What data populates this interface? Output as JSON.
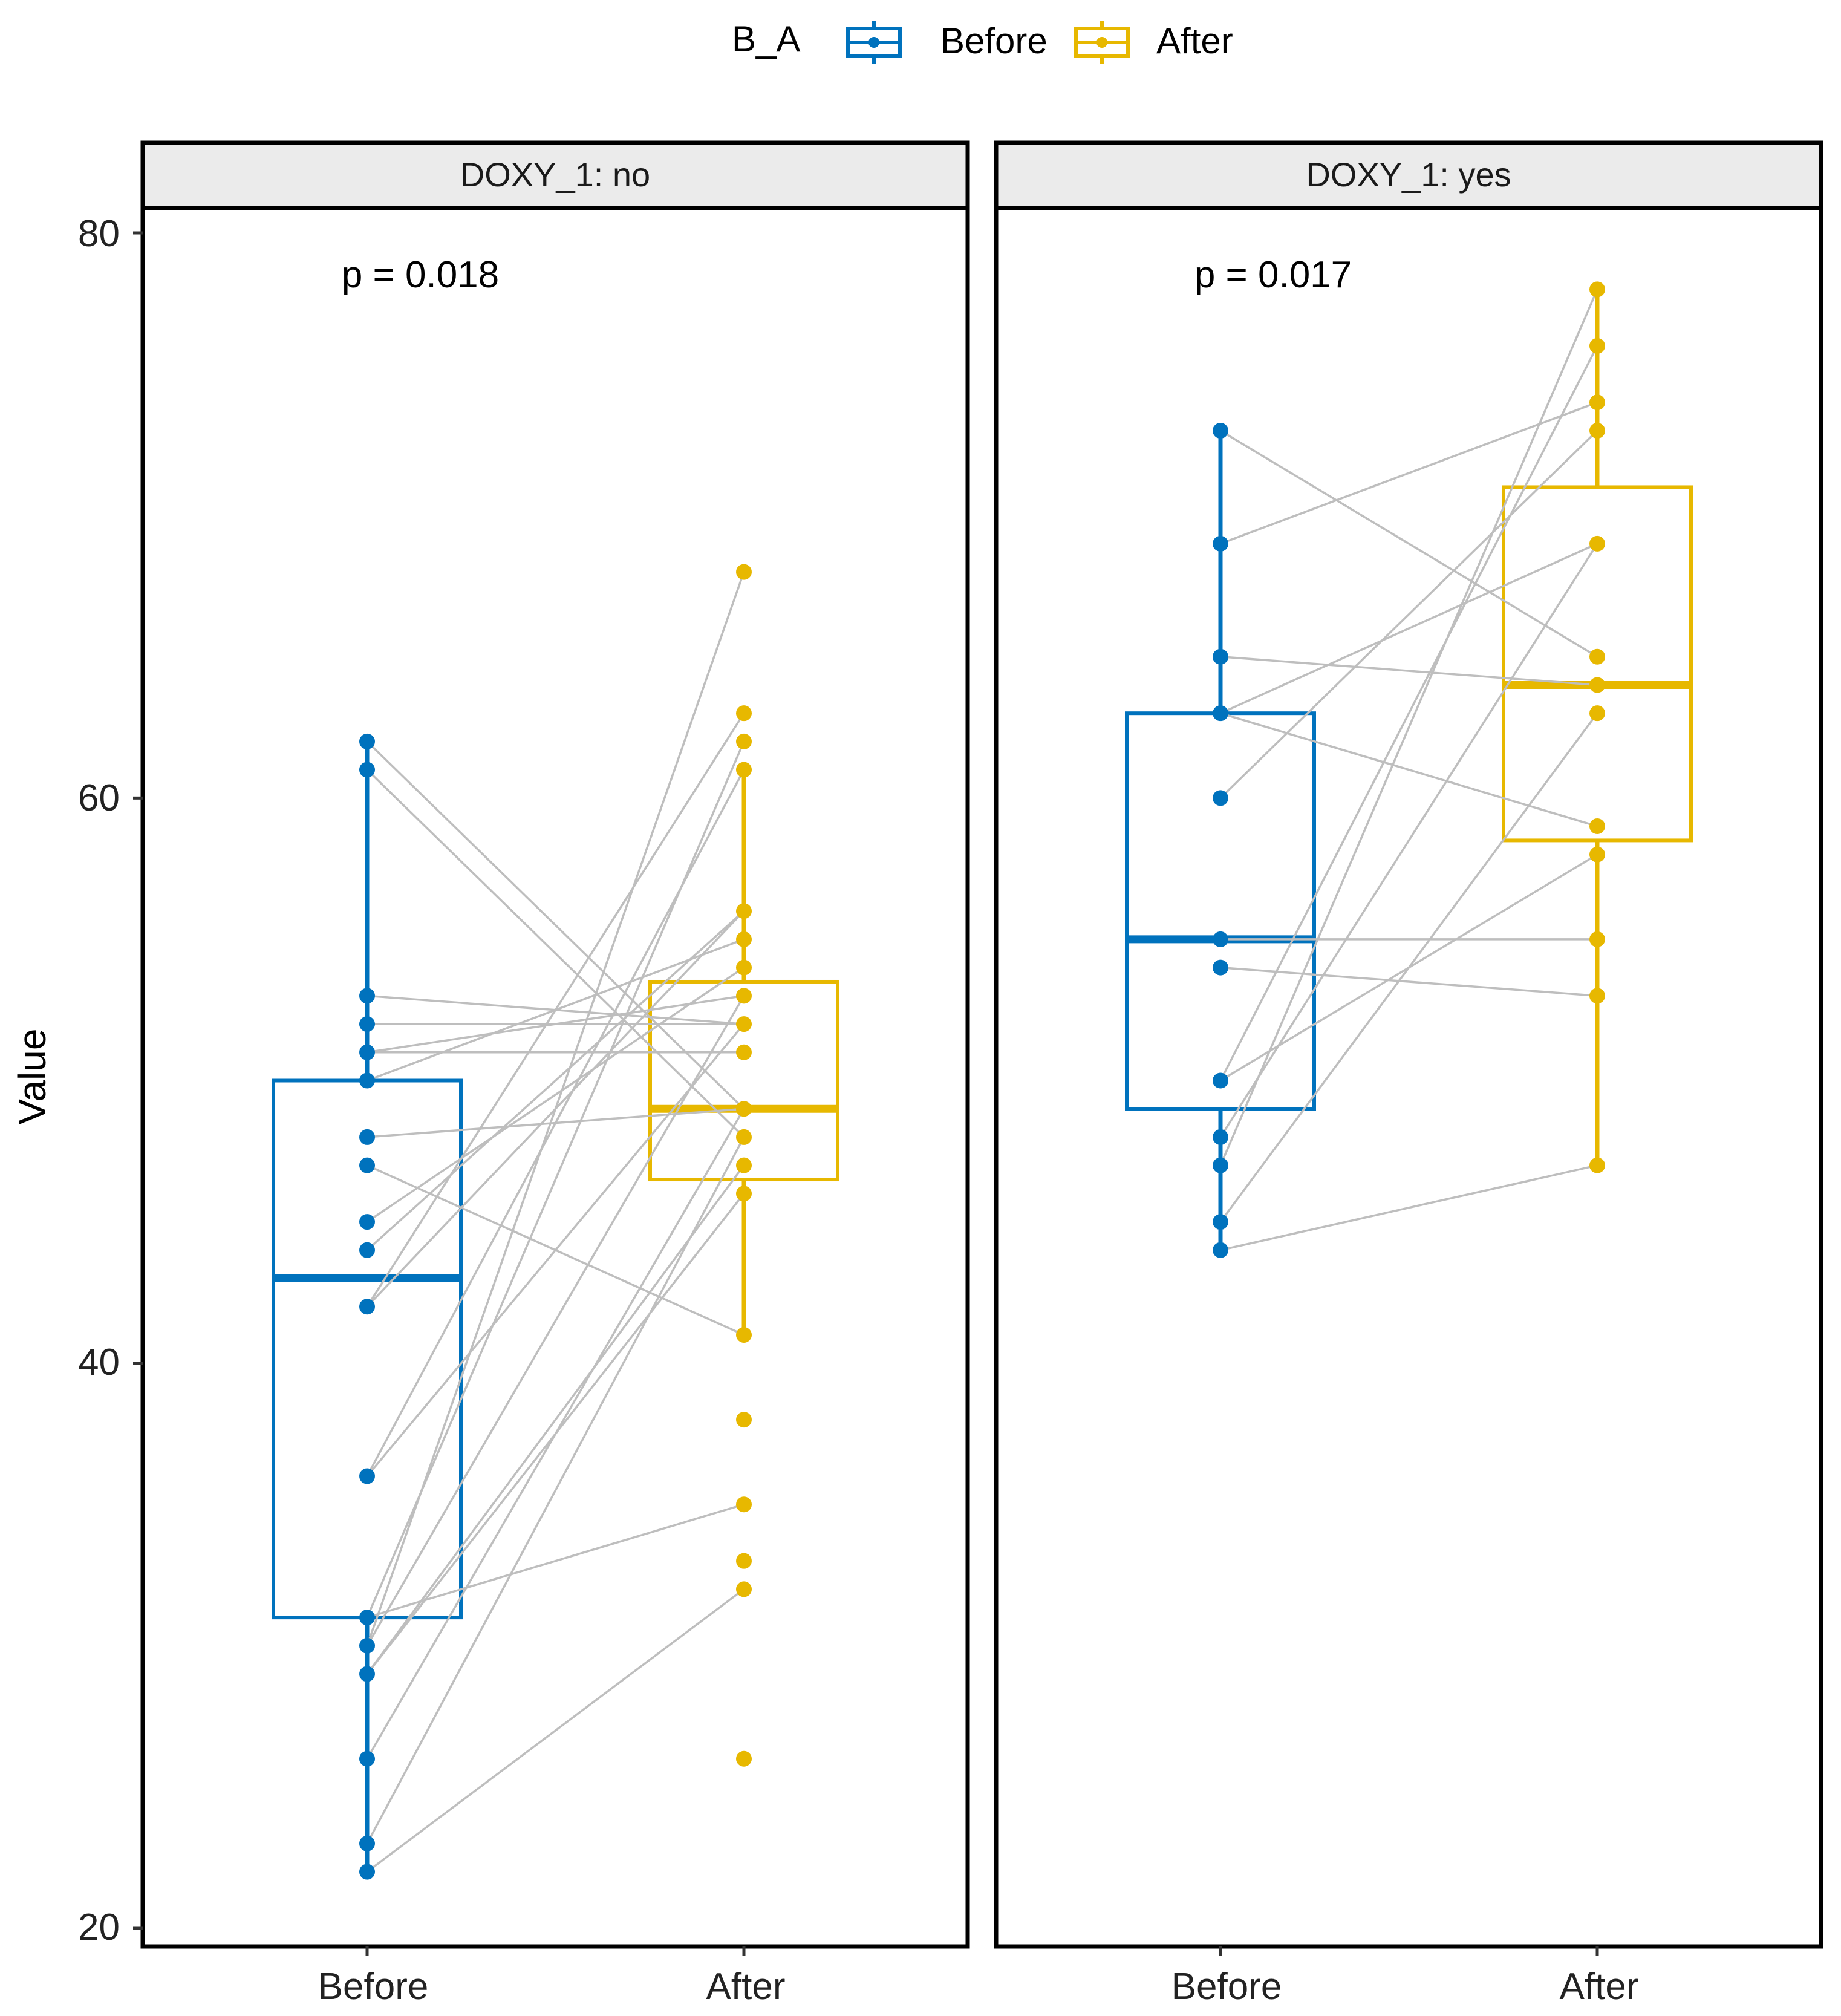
{
  "chart_data": {
    "type": "box",
    "ylabel": "Value",
    "xlabel": "",
    "ylim": [
      20,
      80
    ],
    "yticks": [
      20,
      40,
      60,
      80
    ],
    "categories": [
      "Before",
      "After"
    ],
    "legend": {
      "title": "B_A",
      "position": "top",
      "entries": [
        {
          "name": "Before",
          "color": "#0072BD"
        },
        {
          "name": "After",
          "color": "#E7B800"
        }
      ]
    },
    "colors": {
      "Before": "#0072BD",
      "After": "#E7B800",
      "pair_line": "#BEBEBE"
    },
    "panels": [
      {
        "strip": "DOXY_1: no",
        "pvalue": "p = 0.018",
        "box": {
          "Before": {
            "q1": 31,
            "median": 43,
            "q3": 50,
            "whisker_low": 22,
            "whisker_high": 62
          },
          "After": {
            "q1": 46.5,
            "median": 49,
            "q3": 53.5,
            "whisker_low": 41,
            "whisker_high": 61
          }
        },
        "points": {
          "Before": [
            62,
            61,
            53,
            52,
            51,
            50,
            48,
            47,
            45,
            44,
            42,
            36,
            31,
            30,
            29,
            26,
            23,
            22
          ],
          "After": [
            68,
            63,
            62,
            61,
            56,
            55,
            54,
            53,
            52,
            51,
            49,
            48,
            47,
            46,
            41,
            38,
            35,
            33,
            32,
            26
          ]
        },
        "pairs": [
          [
            62,
            49
          ],
          [
            61,
            48
          ],
          [
            53,
            52
          ],
          [
            52,
            52
          ],
          [
            51,
            51
          ],
          [
            51,
            53
          ],
          [
            50,
            55
          ],
          [
            48,
            49
          ],
          [
            47,
            41
          ],
          [
            45,
            54
          ],
          [
            44,
            56
          ],
          [
            42,
            56
          ],
          [
            42,
            63
          ],
          [
            36,
            52
          ],
          [
            36,
            61
          ],
          [
            31,
            62
          ],
          [
            31,
            35
          ],
          [
            30,
            53
          ],
          [
            30,
            68
          ],
          [
            29,
            47
          ],
          [
            29,
            46
          ],
          [
            26,
            49
          ],
          [
            23,
            48
          ],
          [
            22,
            32
          ]
        ]
      },
      {
        "strip": "DOXY_1: yes",
        "pvalue": "p = 0.017",
        "box": {
          "Before": {
            "q1": 49,
            "median": 55,
            "q3": 63,
            "whisker_low": 44,
            "whisker_high": 73
          },
          "After": {
            "q1": 58.5,
            "median": 64,
            "q3": 71,
            "whisker_low": 47,
            "whisker_high": 78
          }
        },
        "points": {
          "Before": [
            73,
            69,
            65,
            63,
            60,
            55,
            54,
            50,
            48,
            47,
            45,
            44
          ],
          "After": [
            78,
            76,
            74,
            73,
            69,
            65,
            64,
            63,
            59,
            58,
            55,
            53,
            47
          ]
        },
        "pairs": [
          [
            73,
            65
          ],
          [
            69,
            74
          ],
          [
            65,
            64
          ],
          [
            63,
            69
          ],
          [
            63,
            59
          ],
          [
            60,
            73
          ],
          [
            55,
            55
          ],
          [
            54,
            53
          ],
          [
            50,
            76
          ],
          [
            50,
            58
          ],
          [
            48,
            69
          ],
          [
            47,
            78
          ],
          [
            45,
            63
          ],
          [
            44,
            47
          ]
        ]
      }
    ]
  }
}
